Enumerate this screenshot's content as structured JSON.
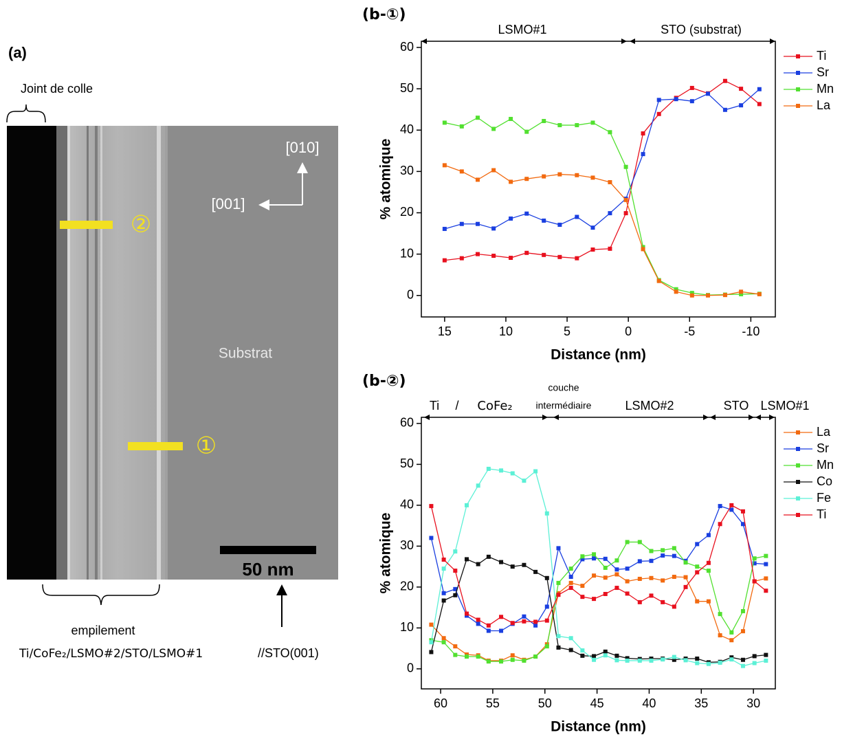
{
  "panel_a": {
    "label": "(a)",
    "glue": "Joint de colle",
    "dir_up": "[010]",
    "dir_left": "[001]",
    "substrate": "Substrat",
    "scale": "50 nm",
    "marker_1": "①",
    "marker_2": "②",
    "stack_label": "empilement",
    "stack": "Ti/CoFe₂/LSMO#2/STO/LSMO#1",
    "substrate_ref": "//STO(001)"
  },
  "chart_data": [
    {
      "type": "line",
      "title": "(b-①)",
      "xlabel": "Distance (nm)",
      "ylabel": "% atomique",
      "annotations": [
        "LSMO#1",
        "STO (substrat)"
      ],
      "xlim": [
        16.9,
        -12
      ],
      "ylim": [
        -5.2,
        61.5
      ],
      "xticks": [
        15,
        10,
        5,
        0,
        -5,
        -10
      ],
      "yticks": [
        0,
        10,
        20,
        30,
        40,
        50,
        60
      ],
      "x": [
        15,
        13.6,
        12.3,
        11,
        9.6,
        8.3,
        6.9,
        5.6,
        4.2,
        2.9,
        1.5,
        0.2,
        -1.2,
        -2.5,
        -3.9,
        -5.2,
        -6.5,
        -7.9,
        -9.2,
        -10.7
      ],
      "series": [
        {
          "name": "Ti",
          "color": "#e8101e",
          "values": [
            8.5,
            9.0,
            10.0,
            9.6,
            9.1,
            10.3,
            9.8,
            9.3,
            9.0,
            11.1,
            11.3,
            19.9,
            39.2,
            43.9,
            47.8,
            50.2,
            48.9,
            51.9,
            50.0,
            46.3
          ]
        },
        {
          "name": "Sr",
          "color": "#1a3fe0",
          "values": [
            16.1,
            17.3,
            17.3,
            16.2,
            18.6,
            19.8,
            18.1,
            17.1,
            19.0,
            16.4,
            19.9,
            23.4,
            34.2,
            47.3,
            47.5,
            47.0,
            48.8,
            44.9,
            46.0,
            49.9
          ]
        },
        {
          "name": "Mn",
          "color": "#52e030",
          "values": [
            41.8,
            40.9,
            43.0,
            40.3,
            42.7,
            39.6,
            42.2,
            41.2,
            41.2,
            41.8,
            39.5,
            31.1,
            11.7,
            3.7,
            1.5,
            0.6,
            0.1,
            0.2,
            0.3,
            0.4
          ]
        },
        {
          "name": "La",
          "color": "#f26a10",
          "values": [
            31.5,
            30.0,
            28.0,
            30.3,
            27.5,
            28.2,
            28.8,
            29.3,
            29.1,
            28.5,
            27.4,
            23.1,
            11.2,
            3.5,
            0.9,
            0.0,
            0.0,
            0.1,
            0.9,
            0.3
          ]
        }
      ]
    },
    {
      "type": "line",
      "title": "(b-②)",
      "xlabel": "Distance (nm)",
      "ylabel": "% atomique",
      "annotations": [
        "Ti",
        "/",
        "CoFe₂",
        "couche",
        "intermédiaire",
        "LSMO#2",
        "STO",
        "LSMO#1"
      ],
      "xlim": [
        61.85,
        27.9
      ],
      "ylim": [
        -4.9,
        61.5
      ],
      "xticks": [
        60,
        55,
        50,
        45,
        40,
        35,
        30
      ],
      "yticks": [
        0,
        10,
        20,
        30,
        40,
        50,
        60
      ],
      "x": [
        60.9,
        59.7,
        58.6,
        57.5,
        56.4,
        55.4,
        54.2,
        53.1,
        52.0,
        50.9,
        49.8,
        48.7,
        47.5,
        46.4,
        45.3,
        44.2,
        43.1,
        42.1,
        40.9,
        39.8,
        38.7,
        37.6,
        36.5,
        35.4,
        34.3,
        33.2,
        32.1,
        31.0,
        29.9,
        28.8
      ],
      "series": [
        {
          "name": "La",
          "color": "#f26a10",
          "values": [
            10.8,
            7.5,
            5.5,
            3.5,
            3.3,
            2.0,
            2.0,
            3.3,
            2.2,
            3.0,
            6.0,
            18.5,
            21.0,
            20.3,
            22.8,
            22.3,
            23.1,
            21.4,
            22.0,
            22.2,
            21.6,
            22.5,
            22.4,
            16.5,
            16.5,
            8.2,
            7.0,
            9.2,
            21.4,
            22.1
          ]
        },
        {
          "name": "Sr",
          "color": "#1a3fe0",
          "values": [
            32.0,
            18.5,
            19.5,
            13.0,
            11.0,
            9.3,
            9.3,
            11.0,
            12.8,
            10.6,
            15.2,
            29.5,
            22.5,
            26.8,
            27.0,
            26.9,
            24.3,
            24.5,
            26.3,
            26.4,
            27.7,
            27.6,
            26.4,
            30.5,
            32.7,
            39.8,
            38.9,
            35.4,
            25.8,
            25.6
          ]
        },
        {
          "name": "Mn",
          "color": "#52e030",
          "values": [
            7.0,
            6.5,
            3.4,
            3.0,
            3.0,
            1.8,
            1.8,
            2.2,
            2.0,
            3.0,
            5.5,
            21.0,
            24.5,
            27.5,
            28.0,
            24.7,
            26.5,
            31.0,
            31.0,
            28.8,
            29.0,
            29.5,
            26.0,
            25.0,
            24.0,
            13.4,
            8.9,
            14.1,
            27.0,
            27.6
          ]
        },
        {
          "name": "Co",
          "color": "#111111",
          "values": [
            4.1,
            16.7,
            18.0,
            26.8,
            25.6,
            27.4,
            26.1,
            25.0,
            25.4,
            23.7,
            22.2,
            5.2,
            4.6,
            3.2,
            3.1,
            4.2,
            3.2,
            2.6,
            2.4,
            2.5,
            2.5,
            2.2,
            2.5,
            2.5,
            1.6,
            1.7,
            2.8,
            2.2,
            3.1,
            3.4
          ]
        },
        {
          "name": "Fe",
          "color": "#5cf0d6",
          "values": [
            6.5,
            24.5,
            28.7,
            40.0,
            44.8,
            48.9,
            48.5,
            47.8,
            46.0,
            48.3,
            38.0,
            8.0,
            7.5,
            4.5,
            2.2,
            3.3,
            2.1,
            2.0,
            2.0,
            2.0,
            2.3,
            2.9,
            2.1,
            1.4,
            1.2,
            1.5,
            2.3,
            0.7,
            1.4,
            2.0
          ]
        },
        {
          "name": "Ti",
          "color": "#e8101e",
          "values": [
            39.8,
            26.7,
            24.0,
            13.5,
            12.0,
            10.6,
            12.7,
            11.2,
            11.6,
            11.5,
            11.8,
            18.1,
            19.8,
            17.6,
            17.1,
            18.3,
            19.8,
            18.4,
            16.3,
            17.9,
            16.3,
            15.2,
            20.0,
            23.6,
            25.9,
            35.4,
            40.0,
            38.5,
            21.4,
            19.1
          ]
        }
      ]
    }
  ]
}
